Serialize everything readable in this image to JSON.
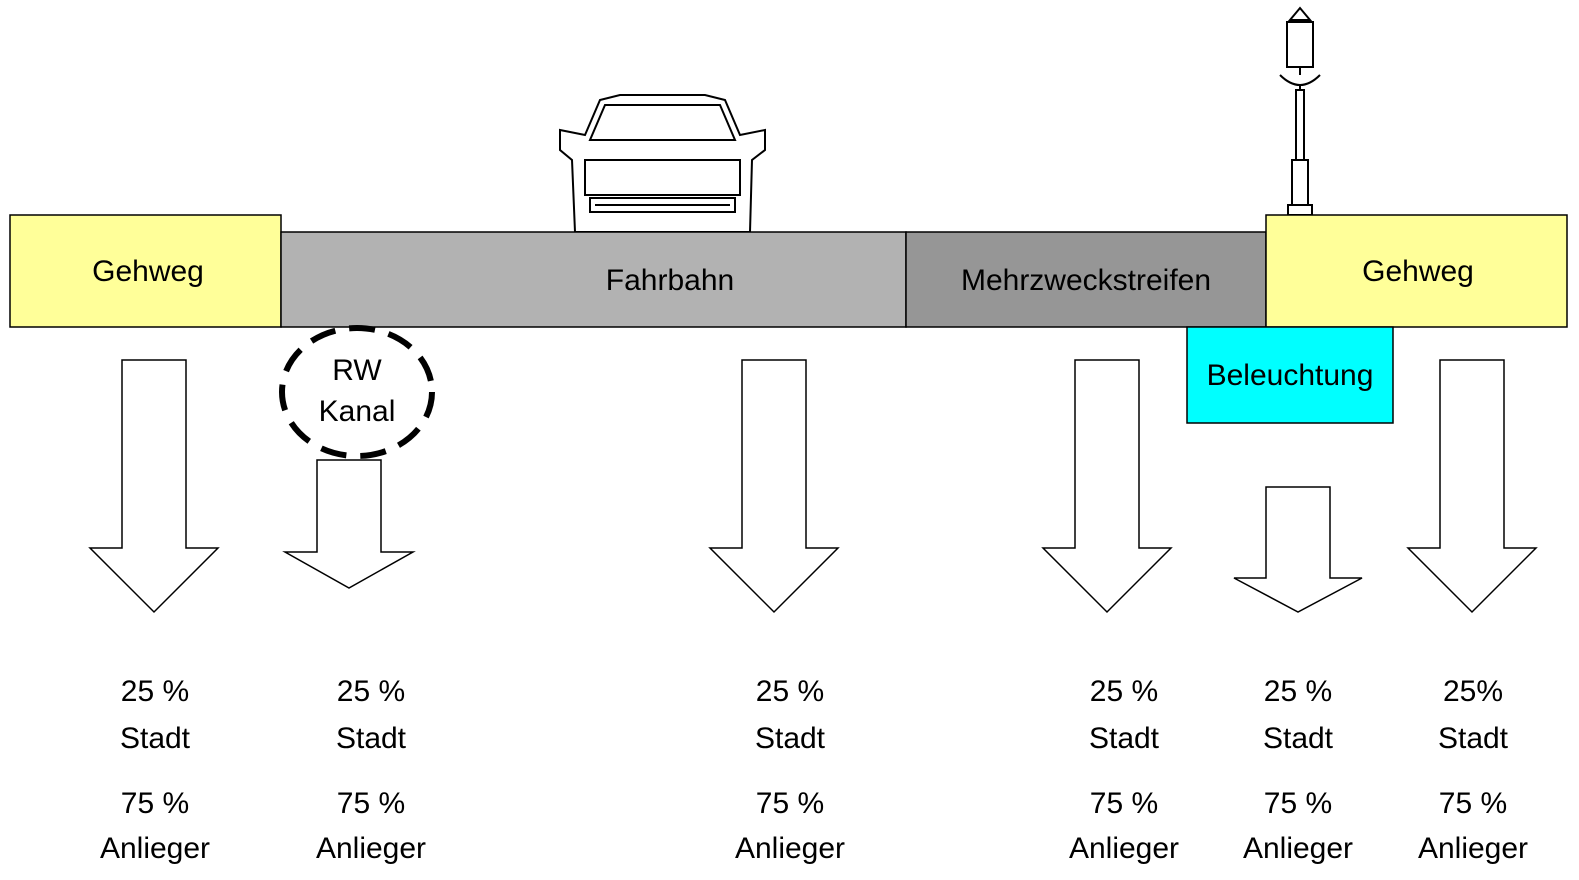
{
  "segments": [
    {
      "label": "Gehweg"
    },
    {
      "label": "Fahrbahn"
    },
    {
      "label": "Mehrzweckstreifen"
    },
    {
      "label": "Gehweg"
    }
  ],
  "lighting": {
    "label": "Beleuchtung"
  },
  "canal": {
    "lines": [
      "RW",
      "Kanal"
    ]
  },
  "columns": [
    {
      "city_share": "25 %",
      "city": "Stadt",
      "resident_share": "75 %",
      "resident": "Anlieger"
    },
    {
      "city_share": "25 %",
      "city": "Stadt",
      "resident_share": "75 %",
      "resident": "Anlieger"
    },
    {
      "city_share": "25 %",
      "city": "Stadt",
      "resident_share": "75 %",
      "resident": "Anlieger"
    },
    {
      "city_share": "25 %",
      "city": "Stadt",
      "resident_share": "75 %",
      "resident": "Anlieger"
    },
    {
      "city_share": "25 %",
      "city": "Stadt",
      "resident_share": "75 %",
      "resident": "Anlieger"
    },
    {
      "city_share": "25%",
      "city": "Stadt",
      "resident_share": "75 %",
      "resident": "Anlieger"
    }
  ]
}
